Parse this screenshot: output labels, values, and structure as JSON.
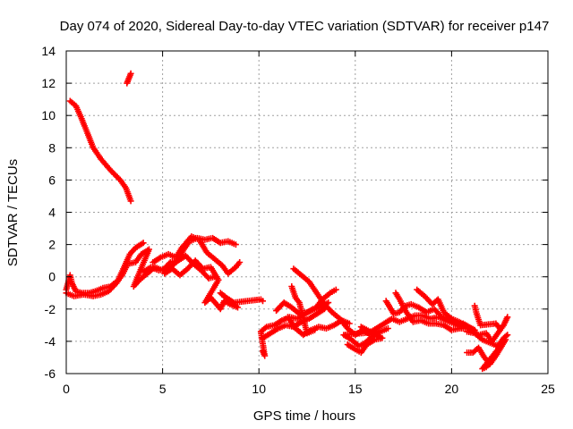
{
  "chart_data": {
    "type": "scatter",
    "title": "Day 074 of 2020, Sidereal Day-to-day VTEC variation (SDTVAR) for receiver p147",
    "xlabel": "GPS time / hours",
    "ylabel": "SDTVAR / TECUs",
    "xlim": [
      0,
      25
    ],
    "ylim": [
      -6,
      14
    ],
    "xticks": [
      0,
      5,
      10,
      15,
      20,
      25
    ],
    "yticks": [
      -6,
      -4,
      -2,
      0,
      2,
      4,
      6,
      8,
      10,
      12,
      14
    ],
    "grid": true,
    "legend": "none",
    "marker": "plus",
    "series": [
      {
        "name": "p147",
        "color": "#ff0000",
        "points": [
          [
            3.15,
            12.0
          ],
          [
            3.25,
            12.3
          ],
          [
            3.35,
            12.6
          ],
          [
            0.2,
            10.9
          ],
          [
            0.5,
            10.6
          ],
          [
            0.8,
            9.8
          ],
          [
            1.1,
            8.9
          ],
          [
            1.4,
            8.0
          ],
          [
            1.8,
            7.3
          ],
          [
            2.3,
            6.6
          ],
          [
            2.8,
            6.0
          ],
          [
            3.1,
            5.5
          ],
          [
            3.35,
            4.7
          ],
          [
            0.0,
            -0.8
          ],
          [
            0.2,
            0.1
          ],
          [
            0.3,
            -0.4
          ],
          [
            0.5,
            -0.9
          ],
          [
            0.8,
            -1.0
          ],
          [
            1.2,
            -1.0
          ],
          [
            1.5,
            -0.9
          ],
          [
            1.9,
            -0.7
          ],
          [
            2.3,
            -0.6
          ],
          [
            2.7,
            -0.2
          ],
          [
            3.0,
            0.6
          ],
          [
            3.3,
            1.4
          ],
          [
            3.6,
            1.8
          ],
          [
            4.0,
            2.1
          ],
          [
            0.0,
            -1.0
          ],
          [
            0.4,
            -1.2
          ],
          [
            0.9,
            -1.1
          ],
          [
            1.4,
            -1.2
          ],
          [
            1.8,
            -1.1
          ],
          [
            2.2,
            -0.9
          ],
          [
            2.6,
            -0.4
          ],
          [
            2.9,
            0.1
          ],
          [
            3.2,
            0.8
          ],
          [
            3.6,
            0.9
          ],
          [
            3.9,
            1.4
          ],
          [
            4.3,
            1.7
          ],
          [
            3.5,
            -0.6
          ],
          [
            3.8,
            -0.2
          ],
          [
            4.2,
            0.2
          ],
          [
            4.6,
            0.6
          ],
          [
            5.0,
            0.4
          ],
          [
            5.4,
            0.9
          ],
          [
            5.8,
            1.0
          ],
          [
            6.2,
            1.3
          ],
          [
            6.6,
            0.8
          ],
          [
            7.0,
            0.4
          ],
          [
            7.4,
            -0.1
          ],
          [
            7.7,
            0.0
          ],
          [
            4.0,
            0.3
          ],
          [
            4.4,
            0.6
          ],
          [
            4.8,
            0.4
          ],
          [
            5.3,
            0.5
          ],
          [
            5.7,
            0.9
          ],
          [
            6.1,
            1.7
          ],
          [
            6.4,
            2.2
          ],
          [
            6.8,
            2.4
          ],
          [
            7.2,
            2.3
          ],
          [
            7.6,
            2.4
          ],
          [
            8.0,
            2.1
          ],
          [
            8.4,
            2.2
          ],
          [
            8.8,
            2.0
          ],
          [
            4.5,
            0.9
          ],
          [
            4.9,
            1.2
          ],
          [
            5.3,
            1.4
          ],
          [
            5.7,
            1.2
          ],
          [
            6.0,
            1.8
          ],
          [
            6.5,
            2.5
          ],
          [
            6.9,
            2.3
          ],
          [
            7.3,
            1.5
          ],
          [
            7.7,
            1.1
          ],
          [
            8.1,
            0.7
          ],
          [
            8.4,
            0.2
          ],
          [
            8.8,
            0.6
          ],
          [
            9.0,
            0.9
          ],
          [
            5.1,
            0.2
          ],
          [
            5.5,
            0.5
          ],
          [
            5.9,
            0.1
          ],
          [
            6.3,
            0.5
          ],
          [
            6.7,
            1.0
          ],
          [
            7.1,
            0.5
          ],
          [
            7.5,
            0.6
          ],
          [
            7.9,
            -0.2
          ],
          [
            7.2,
            -1.6
          ],
          [
            7.5,
            -1.3
          ],
          [
            7.8,
            -1.7
          ],
          [
            8.0,
            -2.0
          ],
          [
            8.2,
            -1.5
          ],
          [
            8.5,
            -1.7
          ],
          [
            8.9,
            -1.9
          ],
          [
            8.0,
            -1.0
          ],
          [
            8.3,
            -1.3
          ],
          [
            8.7,
            -1.6
          ],
          [
            10.1,
            -1.4
          ],
          [
            10.2,
            -1.5
          ],
          [
            10.2,
            -4.6
          ],
          [
            10.3,
            -4.9
          ],
          [
            10.1,
            -3.4
          ],
          [
            10.4,
            -3.1
          ],
          [
            10.8,
            -3.0
          ],
          [
            11.2,
            -2.7
          ],
          [
            11.6,
            -2.5
          ],
          [
            12.0,
            -2.6
          ],
          [
            12.4,
            -2.3
          ],
          [
            12.8,
            -2.0
          ],
          [
            13.2,
            -1.9
          ],
          [
            13.6,
            -1.6
          ],
          [
            10.2,
            -3.8
          ],
          [
            10.6,
            -3.5
          ],
          [
            11.0,
            -3.2
          ],
          [
            11.4,
            -3.0
          ],
          [
            11.8,
            -3.1
          ],
          [
            12.2,
            -2.8
          ],
          [
            12.6,
            -2.6
          ],
          [
            13.0,
            -2.3
          ],
          [
            13.4,
            -2.0
          ],
          [
            10.9,
            -2.1
          ],
          [
            11.3,
            -1.6
          ],
          [
            11.7,
            -1.9
          ],
          [
            12.1,
            -2.3
          ],
          [
            12.5,
            -2.2
          ],
          [
            12.9,
            -2.0
          ],
          [
            13.3,
            -1.4
          ],
          [
            13.7,
            -1.0
          ],
          [
            14.0,
            -0.8
          ],
          [
            11.5,
            -2.5
          ],
          [
            11.9,
            -3.2
          ],
          [
            12.3,
            -3.6
          ],
          [
            12.7,
            -3.3
          ],
          [
            13.1,
            -3.1
          ],
          [
            13.5,
            -3.2
          ],
          [
            13.9,
            -3.0
          ],
          [
            14.3,
            -2.7
          ],
          [
            14.7,
            -2.9
          ],
          [
            11.7,
            -0.6
          ],
          [
            11.9,
            -1.3
          ],
          [
            12.1,
            -1.6
          ],
          [
            12.5,
            -3.5
          ],
          [
            12.9,
            -3.3
          ],
          [
            11.8,
            0.5
          ],
          [
            12.2,
            0.1
          ],
          [
            12.6,
            -0.3
          ],
          [
            13.0,
            -1.0
          ],
          [
            13.4,
            -1.7
          ],
          [
            13.8,
            -2.2
          ],
          [
            14.2,
            -2.6
          ],
          [
            14.6,
            -3.2
          ],
          [
            15.0,
            -3.6
          ],
          [
            15.4,
            -3.3
          ],
          [
            15.8,
            -3.6
          ],
          [
            16.2,
            -3.4
          ],
          [
            14.4,
            -3.6
          ],
          [
            14.8,
            -3.9
          ],
          [
            15.2,
            -4.3
          ],
          [
            15.5,
            -4.1
          ],
          [
            15.9,
            -3.7
          ],
          [
            16.3,
            -3.4
          ],
          [
            16.7,
            -3.2
          ],
          [
            14.6,
            -4.2
          ],
          [
            15.0,
            -4.5
          ],
          [
            15.3,
            -4.7
          ],
          [
            15.6,
            -4.2
          ],
          [
            16.0,
            -3.9
          ],
          [
            16.4,
            -3.8
          ],
          [
            15.3,
            -3.1
          ],
          [
            15.7,
            -3.5
          ],
          [
            16.1,
            -3.2
          ],
          [
            16.5,
            -2.9
          ],
          [
            16.9,
            -2.6
          ],
          [
            17.3,
            -2.8
          ],
          [
            17.7,
            -2.6
          ],
          [
            18.1,
            -2.4
          ],
          [
            18.5,
            -2.4
          ],
          [
            18.9,
            -2.6
          ],
          [
            19.3,
            -2.5
          ],
          [
            19.7,
            -2.7
          ],
          [
            20.1,
            -2.9
          ],
          [
            20.5,
            -3.1
          ],
          [
            16.6,
            -1.5
          ],
          [
            16.8,
            -1.9
          ],
          [
            17.0,
            -2.3
          ],
          [
            17.3,
            -2.2
          ],
          [
            17.6,
            -1.8
          ],
          [
            17.9,
            -1.7
          ],
          [
            18.3,
            -1.9
          ],
          [
            18.7,
            -2.2
          ],
          [
            19.1,
            -2.0
          ],
          [
            19.5,
            -2.5
          ],
          [
            19.9,
            -2.7
          ],
          [
            20.3,
            -2.9
          ],
          [
            20.7,
            -3.0
          ],
          [
            17.1,
            -1.0
          ],
          [
            17.3,
            -1.4
          ],
          [
            17.6,
            -2.1
          ],
          [
            18.0,
            -2.8
          ],
          [
            18.4,
            -2.7
          ],
          [
            18.8,
            -2.9
          ],
          [
            19.2,
            -2.9
          ],
          [
            19.6,
            -3.0
          ],
          [
            20.0,
            -3.3
          ],
          [
            20.4,
            -3.2
          ],
          [
            20.8,
            -3.2
          ],
          [
            18.2,
            -0.8
          ],
          [
            18.6,
            -1.2
          ],
          [
            19.0,
            -1.7
          ],
          [
            19.3,
            -1.4
          ],
          [
            19.6,
            -2.2
          ],
          [
            20.0,
            -2.6
          ],
          [
            20.4,
            -2.8
          ],
          [
            20.8,
            -3.1
          ],
          [
            21.2,
            -3.3
          ],
          [
            20.6,
            -2.9
          ],
          [
            21.0,
            -3.3
          ],
          [
            21.4,
            -3.6
          ],
          [
            21.8,
            -3.5
          ],
          [
            22.1,
            -4.0
          ],
          [
            22.4,
            -3.5
          ],
          [
            22.7,
            -3.0
          ],
          [
            22.9,
            -2.5
          ],
          [
            20.8,
            -3.4
          ],
          [
            21.2,
            -3.5
          ],
          [
            21.6,
            -3.9
          ],
          [
            22.0,
            -4.1
          ],
          [
            22.4,
            -4.3
          ],
          [
            22.7,
            -3.8
          ],
          [
            22.9,
            -3.6
          ],
          [
            20.8,
            -4.7
          ],
          [
            21.1,
            -4.7
          ],
          [
            21.4,
            -4.4
          ],
          [
            21.7,
            -5.0
          ],
          [
            22.0,
            -5.4
          ],
          [
            22.3,
            -4.9
          ],
          [
            22.6,
            -4.3
          ],
          [
            22.8,
            -3.9
          ],
          [
            21.6,
            -5.7
          ],
          [
            21.8,
            -5.6
          ],
          [
            22.0,
            -5.3
          ],
          [
            21.2,
            -1.8
          ],
          [
            21.3,
            -2.3
          ],
          [
            21.5,
            -3.0
          ],
          [
            22.3,
            -2.9
          ],
          [
            22.5,
            -3.2
          ]
        ]
      }
    ]
  }
}
